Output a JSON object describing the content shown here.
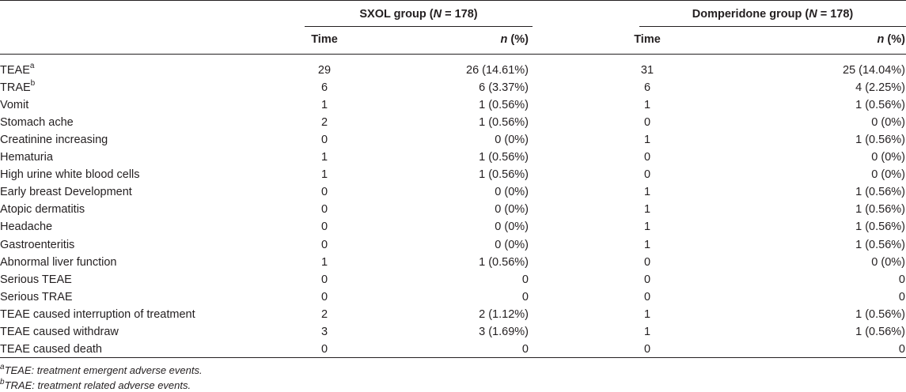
{
  "header": {
    "group1": {
      "name": "SXOL group (",
      "n_symbol": "N",
      "n_value": " = 178)"
    },
    "group2": {
      "name": "Domperidone group (",
      "n_symbol": "N",
      "n_value": " = 178)"
    },
    "col_time": "Time",
    "col_n_symbol": "n",
    "col_n_pct": " (%)"
  },
  "rows": [
    {
      "label": "TEAE",
      "sup": "a",
      "t1": "29",
      "n1": "26 (14.61%)",
      "t2": "31",
      "n2": "25 (14.04%)"
    },
    {
      "label": "TRAE",
      "sup": "b",
      "t1": "6",
      "n1": "6 (3.37%)",
      "t2": "6",
      "n2": "4 (2.25%)"
    },
    {
      "label": "Vomit",
      "sup": "",
      "t1": "1",
      "n1": "1 (0.56%)",
      "t2": "1",
      "n2": "1 (0.56%)"
    },
    {
      "label": "Stomach ache",
      "sup": "",
      "t1": "2",
      "n1": "1 (0.56%)",
      "t2": "0",
      "n2": "0 (0%)"
    },
    {
      "label": "Creatinine increasing",
      "sup": "",
      "t1": "0",
      "n1": "0 (0%)",
      "t2": "1",
      "n2": "1 (0.56%)"
    },
    {
      "label": "Hematuria",
      "sup": "",
      "t1": "1",
      "n1": "1 (0.56%)",
      "t2": "0",
      "n2": "0 (0%)"
    },
    {
      "label": "High urine white blood cells",
      "sup": "",
      "t1": "1",
      "n1": "1 (0.56%)",
      "t2": "0",
      "n2": "0 (0%)"
    },
    {
      "label": "Early breast Development",
      "sup": "",
      "t1": "0",
      "n1": "0 (0%)",
      "t2": "1",
      "n2": "1 (0.56%)"
    },
    {
      "label": "Atopic dermatitis",
      "sup": "",
      "t1": "0",
      "n1": "0 (0%)",
      "t2": "1",
      "n2": "1 (0.56%)"
    },
    {
      "label": "Headache",
      "sup": "",
      "t1": "0",
      "n1": "0 (0%)",
      "t2": "1",
      "n2": "1 (0.56%)"
    },
    {
      "label": "Gastroenteritis",
      "sup": "",
      "t1": "0",
      "n1": "0 (0%)",
      "t2": "1",
      "n2": "1 (0.56%)"
    },
    {
      "label": "Abnormal liver function",
      "sup": "",
      "t1": "1",
      "n1": "1 (0.56%)",
      "t2": "0",
      "n2": "0 (0%)"
    },
    {
      "label": "Serious TEAE",
      "sup": "",
      "t1": "0",
      "n1": "0",
      "t2": "0",
      "n2": "0"
    },
    {
      "label": "Serious TRAE",
      "sup": "",
      "t1": "0",
      "n1": "0",
      "t2": "0",
      "n2": "0"
    },
    {
      "label": "TEAE caused interruption of treatment",
      "sup": "",
      "t1": "2",
      "n1": "2 (1.12%)",
      "t2": "1",
      "n2": "1 (0.56%)"
    },
    {
      "label": "TEAE caused withdraw",
      "sup": "",
      "t1": "3",
      "n1": "3 (1.69%)",
      "t2": "1",
      "n2": "1 (0.56%)"
    },
    {
      "label": "TEAE caused death",
      "sup": "",
      "t1": "0",
      "n1": "0",
      "t2": "0",
      "n2": "0"
    }
  ],
  "footnotes": [
    {
      "sup": "a",
      "text": "TEAE: treatment emergent adverse events."
    },
    {
      "sup": "b",
      "text": "TRAE: treatment related adverse events."
    }
  ]
}
